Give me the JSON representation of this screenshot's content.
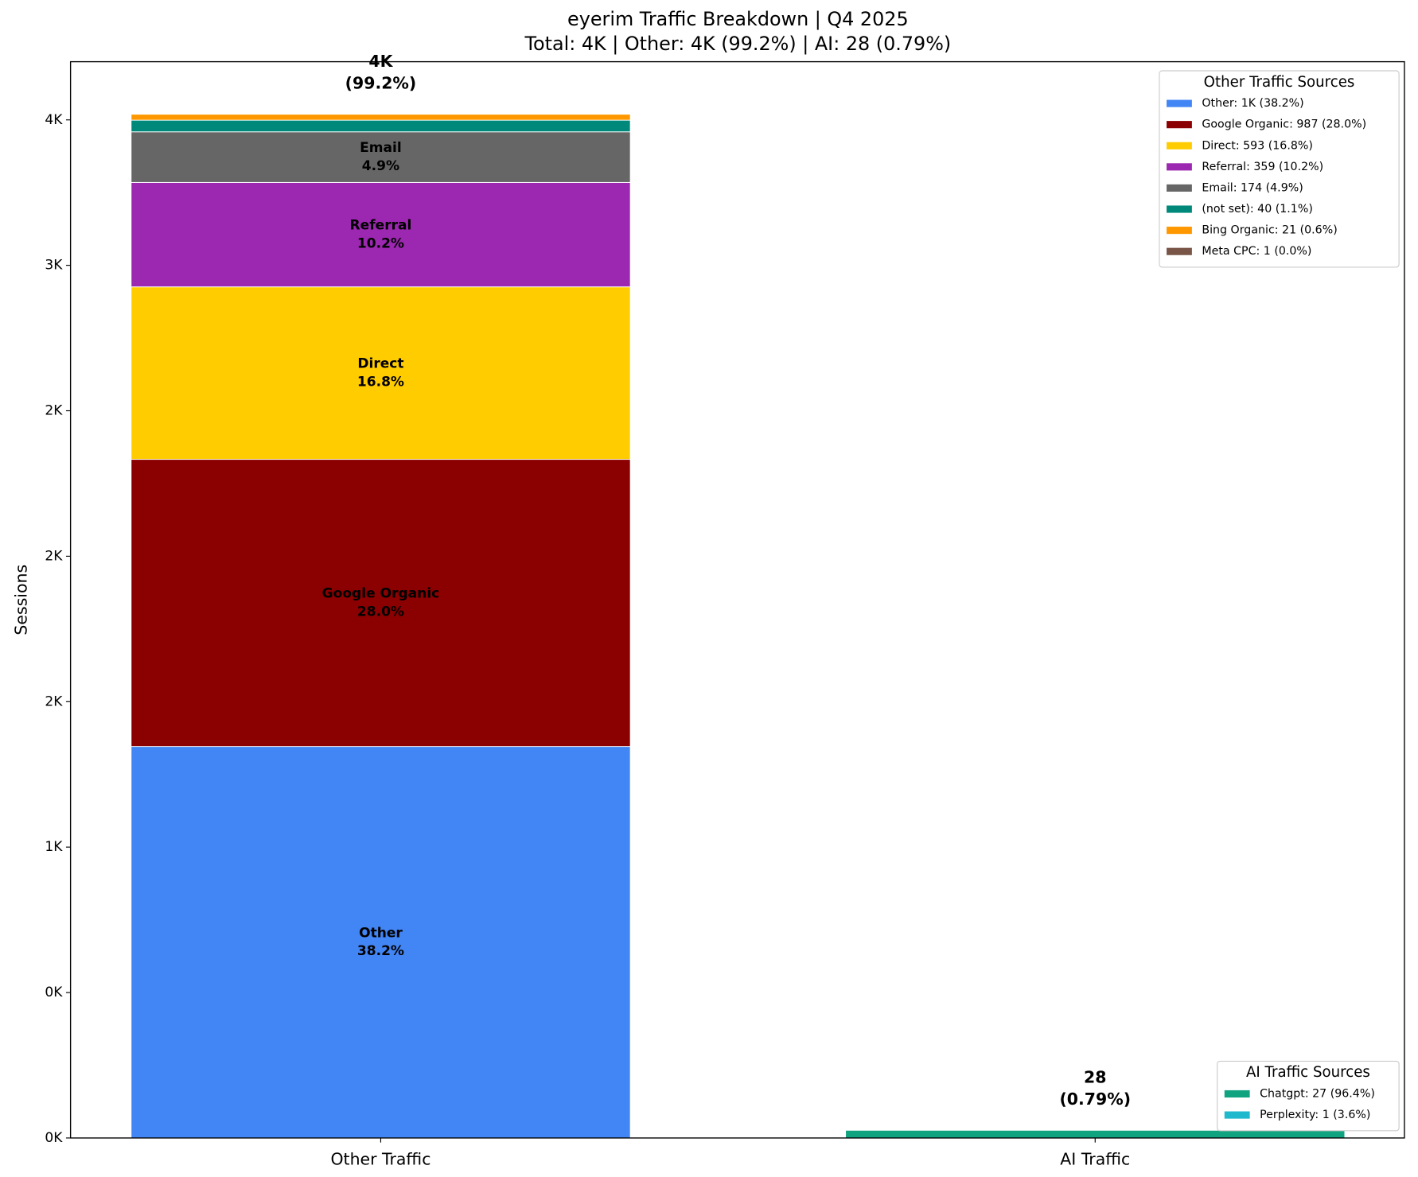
{
  "chart_data": {
    "type": "stacked_bar",
    "title": "eyerim Traffic Breakdown | Q4 2025",
    "subtitle": "Total: 4K | Other: 4K (99.2%) | AI: 28 (0.79%)",
    "y_label": "Sessions",
    "categories": [
      "Other Traffic",
      "AI Traffic"
    ],
    "ylim": [
      0,
      3700
    ],
    "yticks": [
      {
        "value": 0,
        "label": "0K"
      },
      {
        "value": 500,
        "label": "0K"
      },
      {
        "value": 1000,
        "label": "1K"
      },
      {
        "value": 1500,
        "label": "2K"
      },
      {
        "value": 2000,
        "label": "2K"
      },
      {
        "value": 2500,
        "label": "2K"
      },
      {
        "value": 3000,
        "label": "3K"
      },
      {
        "value": 3500,
        "label": "4K"
      }
    ],
    "bar_labels": [
      [
        "4K",
        "(99.2%)"
      ],
      [
        "28",
        "(0.79%)"
      ]
    ],
    "legends": [
      {
        "title": "Other Traffic Sources",
        "position": "upper right"
      },
      {
        "title": "AI Traffic Sources",
        "position": "lower right"
      }
    ],
    "series": [
      {
        "name": "Other",
        "color": "#4285f4",
        "values": [
          1346,
          null
        ],
        "legend": 0,
        "legend_label": "Other: 1K (38.2%)",
        "segment_label": "38.2%"
      },
      {
        "name": "Google Organic",
        "color": "#8b0000",
        "values": [
          987,
          null
        ],
        "legend": 0,
        "legend_label": "Google Organic: 987 (28.0%)",
        "segment_label": "28.0%"
      },
      {
        "name": "Direct",
        "color": "#ffcc00",
        "values": [
          593,
          null
        ],
        "legend": 0,
        "legend_label": "Direct: 593 (16.8%)",
        "segment_label": "16.8%"
      },
      {
        "name": "Referral",
        "color": "#9c27b0",
        "values": [
          359,
          null
        ],
        "legend": 0,
        "legend_label": "Referral: 359 (10.2%)",
        "segment_label": "10.2%"
      },
      {
        "name": "Email",
        "color": "#666666",
        "values": [
          174,
          null
        ],
        "legend": 0,
        "legend_label": "Email: 174 (4.9%)",
        "segment_label": "4.9%"
      },
      {
        "name": "(not set)",
        "color": "#00897b",
        "values": [
          40,
          null
        ],
        "legend": 0,
        "legend_label": "(not set): 40 (1.1%)"
      },
      {
        "name": "Bing Organic",
        "color": "#ff9800",
        "values": [
          21,
          null
        ],
        "legend": 0,
        "legend_label": "Bing Organic: 21 (0.6%)"
      },
      {
        "name": "Meta CPC",
        "color": "#795548",
        "values": [
          1,
          null
        ],
        "legend": 0,
        "legend_label": "Meta CPC: 1 (0.0%)"
      },
      {
        "name": "Chatgpt",
        "color": "#10a37f",
        "values": [
          null,
          27
        ],
        "legend": 1,
        "legend_label": "Chatgpt: 27 (96.4%)"
      },
      {
        "name": "Perplexity",
        "color": "#20b8cd",
        "values": [
          null,
          1
        ],
        "legend": 1,
        "legend_label": "Perplexity: 1 (3.6%)"
      }
    ]
  }
}
